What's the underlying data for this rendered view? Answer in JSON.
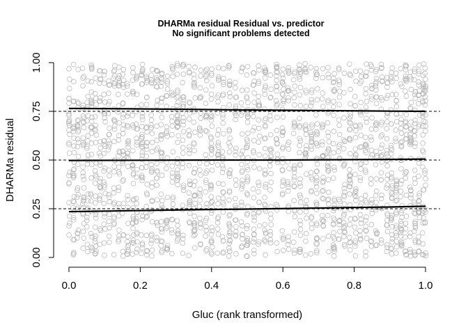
{
  "chart_data": {
    "type": "scatter",
    "title": "DHARMa residual Residual vs. predictor",
    "subtitle": "No significant problems detected",
    "xlabel": "Gluc (rank transformed)",
    "ylabel": "DHARMa residual",
    "xlim": [
      0.0,
      1.0
    ],
    "ylim": [
      0.0,
      1.0
    ],
    "xticks": [
      0.0,
      0.2,
      0.4,
      0.6,
      0.8,
      1.0
    ],
    "xtick_labels": [
      "0.0",
      "0.2",
      "0.4",
      "0.6",
      "0.8",
      "1.0"
    ],
    "yticks": [
      0.0,
      0.25,
      0.5,
      0.75,
      1.0
    ],
    "ytick_labels": [
      "0.00",
      "0.25",
      "0.50",
      "0.75",
      "1.00"
    ],
    "grid": false,
    "reference_lines": [
      0.25,
      0.5,
      0.75
    ],
    "point_color": "#b3b3b3",
    "line_color": "#000000",
    "x_columns": [
      0.0,
      0.013,
      0.025,
      0.04,
      0.052,
      0.063,
      0.075,
      0.087,
      0.1,
      0.112,
      0.127,
      0.14,
      0.152,
      0.165,
      0.18,
      0.19,
      0.205,
      0.218,
      0.232,
      0.247,
      0.26,
      0.275,
      0.29,
      0.305,
      0.32,
      0.338,
      0.352,
      0.368,
      0.385,
      0.4,
      0.418,
      0.432,
      0.45,
      0.468,
      0.485,
      0.5,
      0.518,
      0.533,
      0.55,
      0.565,
      0.583,
      0.6,
      0.615,
      0.632,
      0.648,
      0.664,
      0.68,
      0.695,
      0.712,
      0.727,
      0.743,
      0.758,
      0.772,
      0.788,
      0.803,
      0.818,
      0.833,
      0.848,
      0.862,
      0.877,
      0.892,
      0.905,
      0.918,
      0.932,
      0.945,
      0.958,
      0.97,
      0.982,
      0.993,
      1.0
    ],
    "column_counts": [
      28,
      30,
      26,
      32,
      24,
      30,
      28,
      26,
      30,
      24,
      28,
      30,
      26,
      28,
      30,
      26,
      38,
      28,
      30,
      26,
      36,
      28,
      26,
      40,
      30,
      28,
      38,
      26,
      30,
      42,
      28,
      30,
      38,
      26,
      28,
      40,
      30,
      26,
      38,
      28,
      30,
      36,
      26,
      28,
      34,
      30,
      26,
      38,
      28,
      30,
      36,
      26,
      28,
      34,
      30,
      28,
      32,
      26,
      30,
      28,
      32,
      34,
      30,
      36,
      32,
      30,
      34,
      30,
      32,
      24
    ],
    "quantile_lines": [
      {
        "quantile": 0.25,
        "points": [
          [
            0.0,
            0.235
          ],
          [
            0.17,
            0.24
          ],
          [
            0.35,
            0.245
          ],
          [
            0.48,
            0.248
          ],
          [
            0.65,
            0.252
          ],
          [
            0.78,
            0.256
          ],
          [
            0.9,
            0.259
          ],
          [
            1.0,
            0.263
          ]
        ]
      },
      {
        "quantile": 0.5,
        "points": [
          [
            0.0,
            0.498
          ],
          [
            0.2,
            0.499
          ],
          [
            0.4,
            0.5
          ],
          [
            0.6,
            0.5
          ],
          [
            0.8,
            0.502
          ],
          [
            0.87,
            0.503
          ],
          [
            1.0,
            0.505
          ]
        ]
      },
      {
        "quantile": 0.75,
        "points": [
          [
            0.0,
            0.765
          ],
          [
            0.17,
            0.763
          ],
          [
            0.35,
            0.76
          ],
          [
            0.48,
            0.757
          ],
          [
            0.65,
            0.755
          ],
          [
            0.78,
            0.753
          ],
          [
            0.9,
            0.751
          ],
          [
            1.0,
            0.75
          ]
        ]
      }
    ]
  }
}
